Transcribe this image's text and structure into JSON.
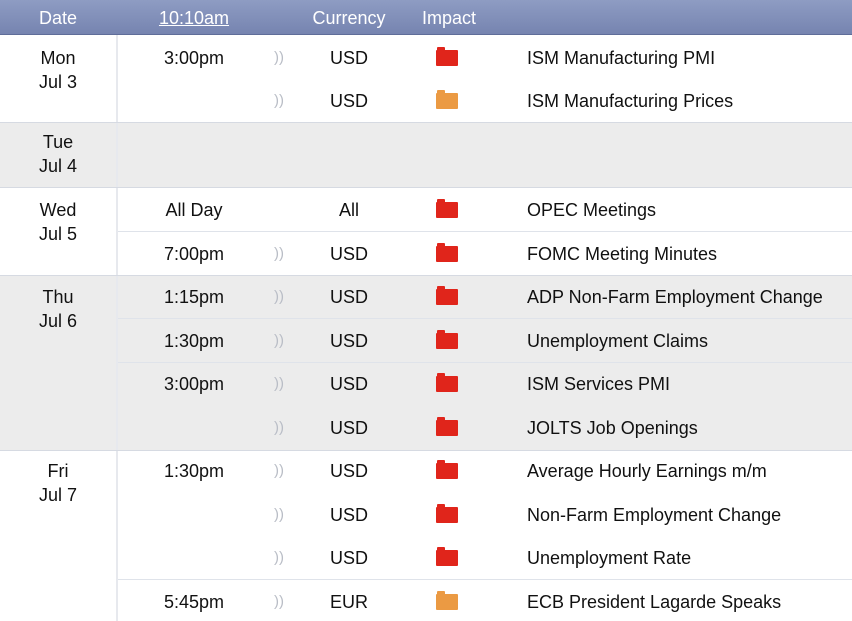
{
  "header": {
    "date": "Date",
    "time": "10:10am",
    "currency": "Currency",
    "impact": "Impact"
  },
  "colors": {
    "header": "#7e8cb7",
    "shaded_group": "#ececec",
    "high_impact": "#e0251b",
    "medium_impact": "#eb9a43"
  },
  "groups": [
    {
      "day": "Mon",
      "date": "Jul 3"
    },
    {
      "day": "Tue",
      "date": "Jul 4"
    },
    {
      "day": "Wed",
      "date": "Jul 5"
    },
    {
      "day": "Thu",
      "date": "Jul 6"
    },
    {
      "day": "Fri",
      "date": "Jul 7"
    }
  ],
  "rows": [
    {
      "time": "3:00pm",
      "currency": "USD",
      "impact": "high",
      "event": "ISM Manufacturing PMI"
    },
    {
      "time": "",
      "currency": "USD",
      "impact": "medium",
      "event": "ISM Manufacturing Prices"
    },
    {
      "time": "All Day",
      "currency": "All",
      "impact": "high",
      "event": "OPEC Meetings"
    },
    {
      "time": "7:00pm",
      "currency": "USD",
      "impact": "high",
      "event": "FOMC Meeting Minutes"
    },
    {
      "time": "1:15pm",
      "currency": "USD",
      "impact": "high",
      "event": "ADP Non-Farm Employment Change"
    },
    {
      "time": "1:30pm",
      "currency": "USD",
      "impact": "high",
      "event": "Unemployment Claims"
    },
    {
      "time": "3:00pm",
      "currency": "USD",
      "impact": "high",
      "event": "ISM Services PMI"
    },
    {
      "time": "",
      "currency": "USD",
      "impact": "high",
      "event": "JOLTS Job Openings"
    },
    {
      "time": "1:30pm",
      "currency": "USD",
      "impact": "high",
      "event": "Average Hourly Earnings m/m"
    },
    {
      "time": "",
      "currency": "USD",
      "impact": "high",
      "event": "Non-Farm Employment Change"
    },
    {
      "time": "",
      "currency": "USD",
      "impact": "high",
      "event": "Unemployment Rate"
    },
    {
      "time": "5:45pm",
      "currency": "EUR",
      "impact": "medium",
      "event": "ECB President Lagarde Speaks"
    }
  ]
}
